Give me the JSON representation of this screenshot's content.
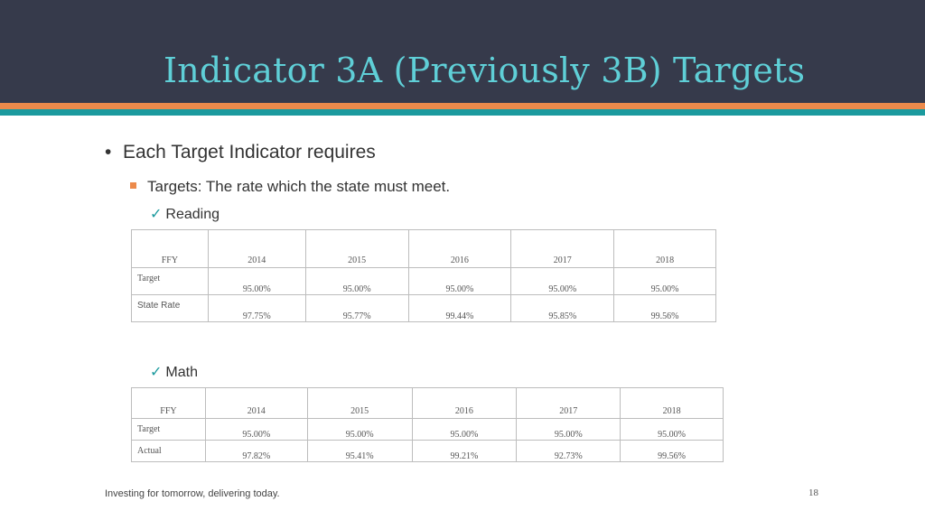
{
  "slide": {
    "title": "Indicator 3A (Previously 3B) Targets",
    "bullet_1": "Each Target Indicator requires",
    "bullet_2": "Targets:  The rate which the state must meet.",
    "reading_label": "Reading",
    "math_label": "Math",
    "footer": "Investing for tomorrow, delivering today.",
    "page_number": "18"
  },
  "reading_table": {
    "header_label": "FFY",
    "years": [
      "2014",
      "2015",
      "2016",
      "2017",
      "2018"
    ],
    "rows": [
      {
        "label": "Target",
        "values": [
          "95.00%",
          "95.00%",
          "95.00%",
          "95.00%",
          "95.00%"
        ]
      },
      {
        "label": "State Rate",
        "values": [
          "97.75%",
          "95.77%",
          "99.44%",
          "95.85%",
          "99.56%"
        ]
      }
    ]
  },
  "math_table": {
    "header_label": "FFY",
    "years": [
      "2014",
      "2015",
      "2016",
      "2017",
      "2018"
    ],
    "rows": [
      {
        "label": "Target",
        "values": [
          "95.00%",
          "95.00%",
          "95.00%",
          "95.00%",
          "95.00%"
        ]
      },
      {
        "label": "Actual",
        "values": [
          "97.82%",
          "95.41%",
          "99.21%",
          "92.73%",
          "99.56%"
        ]
      }
    ]
  },
  "colors": {
    "header_bg": "#363a4b",
    "title_color": "#5fcfd7",
    "accent_orange": "#ec8a4b",
    "accent_teal": "#1b9a9e"
  }
}
